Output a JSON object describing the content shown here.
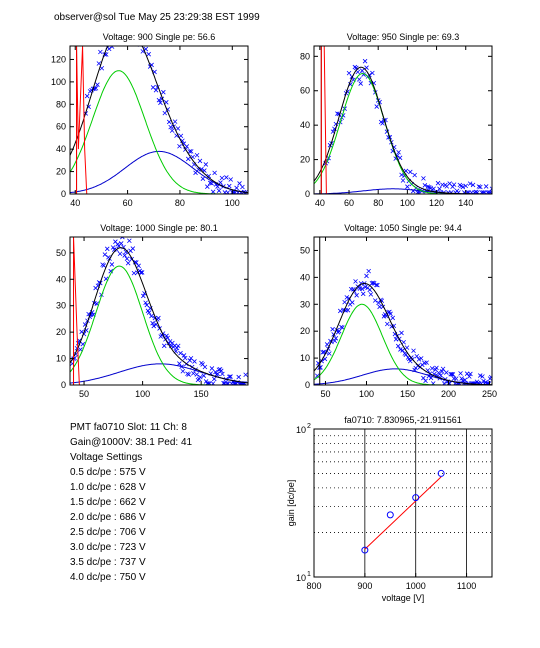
{
  "page_title": "observer@sol  Tue May 25 23:29:38 EST 1999",
  "info": {
    "pmt_line": "PMT fa0710 Slot: 11 Ch: 8",
    "gain_line": "Gain@1000V: 38.1 Ped: 41",
    "settings_header": "Voltage Settings",
    "settings": [
      "0.5 dc/pe : 575 V",
      "1.0 dc/pe : 628 V",
      "1.5 dc/pe : 662 V",
      "2.0 dc/pe : 686 V",
      "2.5 dc/pe : 706 V",
      "3.0 dc/pe : 723 V",
      "3.5 dc/pe : 737 V",
      "4.0 dc/pe : 750 V"
    ]
  },
  "colors": {
    "data_points": "#0000ff",
    "total_fit": "#000000",
    "single_pe_fit": "#00cc00",
    "multi_pe_fit": "#0000cc",
    "pedestal": "#ff0000",
    "gain_fit": "#ff0000",
    "gain_points": "#0000ff"
  },
  "chart_data": [
    {
      "type": "scatter",
      "title": "Voltage: 900 Single pe: 56.6",
      "xlim": [
        38,
        106
      ],
      "ylim": [
        0,
        132
      ],
      "xticks": [
        40,
        60,
        80,
        100
      ],
      "yticks": [
        0,
        20,
        40,
        60,
        80,
        100,
        120
      ],
      "pedestal": {
        "x": [
          40.5,
          41.2,
          42.8,
          43.6,
          44.4
        ],
        "height": [
          132,
          40,
          132,
          40,
          0
        ]
      },
      "fit_components": [
        {
          "name": "total",
          "mu": 57,
          "sigma": 11.5,
          "amp": 130,
          "mu2": 72,
          "sigma2": 13,
          "amp2": 38
        },
        {
          "name": "single",
          "mu": 56.6,
          "sigma": 10,
          "amp": 110
        },
        {
          "name": "multi",
          "mu": 72,
          "sigma": 13,
          "amp": 38
        }
      ],
      "points_seed": 1,
      "n_points": 110,
      "x_start": 44,
      "x_end": 105
    },
    {
      "type": "scatter",
      "title": "Voltage: 950 Single pe: 69.3",
      "xlim": [
        36,
        158
      ],
      "ylim": [
        0,
        86
      ],
      "xticks": [
        40,
        60,
        80,
        100,
        120,
        140
      ],
      "yticks": [
        0,
        20,
        40,
        60,
        80
      ],
      "pedestal": {
        "x": [
          41,
          43,
          44.5
        ],
        "height": [
          86,
          86,
          0
        ]
      },
      "fit_components": [
        {
          "name": "total",
          "mu": 68,
          "sigma": 15,
          "amp": 72,
          "mu2": 90,
          "sigma2": 20,
          "amp2": 3
        },
        {
          "name": "single",
          "mu": 69.3,
          "sigma": 15,
          "amp": 70
        },
        {
          "name": "multi",
          "mu": 90,
          "sigma": 20,
          "amp": 3
        }
      ],
      "points_seed": 2,
      "n_points": 115,
      "x_start": 44,
      "x_end": 158
    },
    {
      "type": "scatter",
      "title": "Voltage: 1000 Single pe: 80.1",
      "xlim": [
        38,
        190
      ],
      "ylim": [
        0,
        56
      ],
      "xticks": [
        50,
        100,
        150
      ],
      "yticks": [
        0,
        10,
        20,
        30,
        40,
        50
      ],
      "pedestal": {
        "x": [
          41,
          44,
          46
        ],
        "height": [
          56,
          20,
          0
        ]
      },
      "fit_components": [
        {
          "name": "total",
          "mu": 80,
          "sigma": 22,
          "amp": 47,
          "mu2": 115,
          "sigma2": 35,
          "amp2": 8
        },
        {
          "name": "single",
          "mu": 80.1,
          "sigma": 20,
          "amp": 45
        },
        {
          "name": "multi",
          "mu": 115,
          "sigma": 35,
          "amp": 8
        }
      ],
      "points_seed": 3,
      "n_points": 150,
      "x_start": 40,
      "x_end": 188
    },
    {
      "type": "scatter",
      "title": "Voltage: 1050 Single pe: 94.4",
      "xlim": [
        36,
        253
      ],
      "ylim": [
        0,
        55
      ],
      "xticks": [
        50,
        100,
        150,
        200,
        250
      ],
      "yticks": [
        0,
        10,
        20,
        30,
        40,
        50
      ],
      "pedestal": {
        "x": [
          43,
          46
        ],
        "height": [
          0,
          0
        ]
      },
      "fit_components": [
        {
          "name": "total",
          "mu": 95,
          "sigma": 30,
          "amp": 34,
          "mu2": 135,
          "sigma2": 40,
          "amp2": 6
        },
        {
          "name": "single",
          "mu": 94.4,
          "sigma": 25,
          "amp": 30
        },
        {
          "name": "multi",
          "mu": 135,
          "sigma": 40,
          "amp": 6
        }
      ],
      "points_seed": 4,
      "n_points": 160,
      "x_start": 40,
      "x_end": 252
    },
    {
      "type": "line",
      "title": "fa0710: 7.830965,-21.911561",
      "xlabel": "voltage [V]",
      "ylabel": "gain [dc/pe]",
      "xlim": [
        800,
        1150
      ],
      "ylim": [
        10,
        100
      ],
      "yscale": "log",
      "xticks": [
        800,
        900,
        1000,
        1100
      ],
      "yticks_labels": [
        "10",
        "10"
      ],
      "y_exponents": [
        "2",
        "1"
      ],
      "points": {
        "x": [
          900,
          950,
          1000,
          1050
        ],
        "y": [
          15.2,
          26.3,
          34.4,
          50.1
        ]
      },
      "fit": {
        "x": [
          900,
          1050
        ],
        "y": [
          15.4,
          47.5
        ]
      },
      "grid": "dotted horizontal, solid vertical at 900/1000/1100"
    }
  ]
}
